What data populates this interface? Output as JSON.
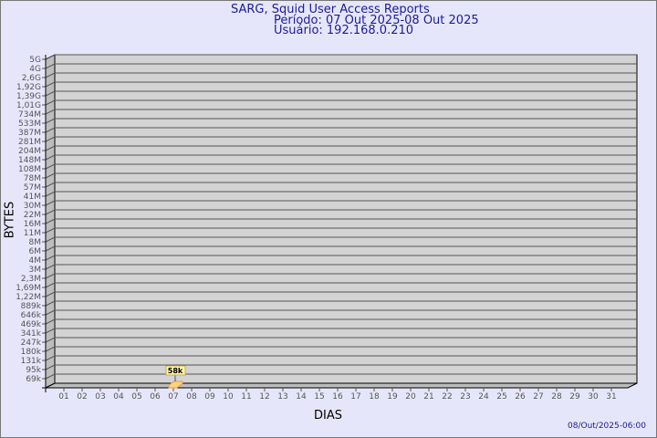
{
  "chart_data": {
    "type": "bar",
    "title": "SARG, Squid User Access Reports",
    "subtitle_period": "Período: 07 Out 2025-08 Out 2025",
    "subtitle_user": "Usuário: 192.168.0.210",
    "xlabel": "DIAS",
    "ylabel": "BYTES",
    "y_scale": "log",
    "y_tick_labels": [
      "5G",
      "4G",
      "2,6G",
      "1,92G",
      "1,39G",
      "1,01G",
      "734M",
      "533M",
      "387M",
      "281M",
      "204M",
      "148M",
      "108M",
      "78M",
      "57M",
      "41M",
      "30M",
      "22M",
      "16M",
      "11M",
      "8M",
      "6M",
      "4M",
      "3M",
      "2,3M",
      "1,69M",
      "1,22M",
      "889k",
      "646k",
      "469k",
      "341k",
      "247k",
      "180k",
      "131k",
      "95k",
      "69k"
    ],
    "categories": [
      "01",
      "02",
      "03",
      "04",
      "05",
      "06",
      "07",
      "08",
      "09",
      "10",
      "11",
      "12",
      "13",
      "14",
      "15",
      "16",
      "17",
      "18",
      "19",
      "20",
      "21",
      "22",
      "23",
      "24",
      "25",
      "26",
      "27",
      "28",
      "29",
      "30",
      "31"
    ],
    "bars": [
      {
        "day": "07",
        "value_bytes": 58000,
        "label": "58k"
      }
    ],
    "grid": true,
    "timestamp": "08/Out/2025-06:00",
    "colors": {
      "title": "#1a1a9a",
      "plot_bg": "#d3d3d3",
      "bar": "#ffd27f",
      "label_bg": "#fff5b0",
      "background": "#e6e6fa"
    }
  }
}
